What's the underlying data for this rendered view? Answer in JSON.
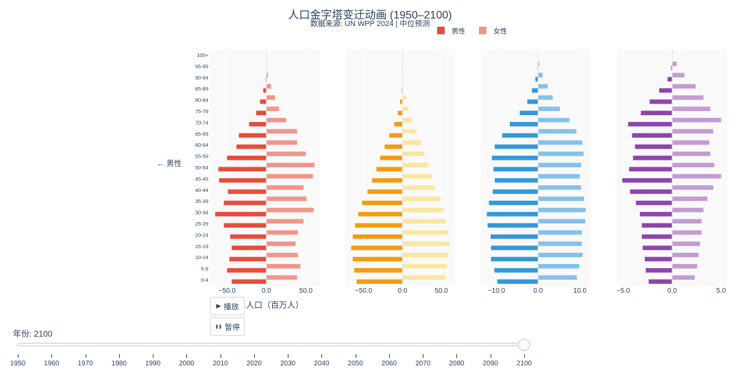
{
  "title": "人口金字塔变迁动画 (1950–2100)",
  "subtitle": "数据来源: UN WPP 2024 | 中位预测",
  "legend": [
    {
      "label": "男性",
      "color": "#e74c3c"
    },
    {
      "label": "女性",
      "color": "#f1948a"
    }
  ],
  "side_label": "← 男性",
  "x_axis_title": "人口（百万人）",
  "buttons": {
    "play": "播放",
    "play_icon": "▶",
    "pause": "暂停",
    "pause_icon": "❚❚"
  },
  "slider": {
    "prefix": "年份: ",
    "value": "2100",
    "current": 2100,
    "min": 1950,
    "max": 2100,
    "ticks": [
      "1950",
      "1960",
      "1970",
      "1980",
      "1990",
      "2000",
      "2010",
      "2020",
      "2030",
      "2040",
      "2050",
      "2060",
      "2070",
      "2080",
      "2090",
      "2100"
    ]
  },
  "chart_data": {
    "type": "bar",
    "orientation": "horizontal",
    "age_groups": [
      "100+",
      "95-99",
      "90-94",
      "85-89",
      "80-84",
      "75-79",
      "70-74",
      "65-69",
      "60-64",
      "55-59",
      "50-54",
      "45-49",
      "40-44",
      "35-39",
      "30-34",
      "25-29",
      "20-24",
      "15-19",
      "10-14",
      "5-9",
      "0-4"
    ],
    "xlabel": "人口（百万人）",
    "panels": [
      {
        "male_color": "#e74c3c",
        "female_color": "#f1948a",
        "xlim": [
          -72,
          68
        ],
        "ticks": [
          -50,
          0,
          50
        ],
        "tick_labels": [
          "−50.0",
          "0.0",
          "50.0"
        ],
        "male": [
          0,
          0,
          1,
          4,
          8,
          13,
          22,
          35,
          38,
          50,
          61,
          60,
          49,
          54,
          65,
          54,
          46,
          44,
          47,
          50,
          44
        ],
        "female": [
          0,
          0.3,
          2,
          6,
          11,
          16,
          25,
          39,
          39,
          50,
          61,
          59,
          47,
          51,
          60,
          47,
          40,
          37,
          40,
          43,
          39
        ]
      },
      {
        "male_color": "#f39c12",
        "female_color": "#f9e79f",
        "xlim": [
          -73.5,
          67.5
        ],
        "ticks": [
          -50,
          0,
          50
        ],
        "tick_labels": [
          "−50.0",
          "0.0",
          "50.0"
        ],
        "male": [
          0,
          0.1,
          0.3,
          1,
          3,
          6,
          10.6,
          17,
          23,
          28.5,
          33.5,
          39,
          45,
          52,
          57,
          61,
          64,
          66,
          64,
          62,
          59
        ],
        "female": [
          0,
          0.2,
          0.6,
          1.5,
          4.7,
          7.6,
          12,
          18,
          24,
          28.5,
          33,
          38,
          42,
          49,
          53,
          56,
          59,
          61,
          59,
          57,
          55
        ]
      },
      {
        "male_color": "#3498db",
        "female_color": "#85c1e9",
        "xlim": [
          -13.7,
          12.6
        ],
        "ticks": [
          -10,
          0,
          10
        ],
        "tick_labels": [
          "−10.0",
          "0.0",
          "10.0"
        ],
        "male": [
          0,
          0.1,
          0.66,
          1.5,
          2.6,
          4.4,
          6.8,
          8.6,
          10.4,
          11.1,
          10.7,
          10.4,
          10.9,
          11.8,
          12.3,
          12.1,
          11.4,
          11.3,
          11.3,
          10.5,
          9.8
        ],
        "female": [
          0,
          0.3,
          1.1,
          2.3,
          3.5,
          5.2,
          7.5,
          9.2,
          10.6,
          10.9,
          10.3,
          10.0,
          10.3,
          11.0,
          11.4,
          11.3,
          10.5,
          10.5,
          10.7,
          9.9,
          9.3
        ]
      },
      {
        "male_color": "#8e44ad",
        "female_color": "#c39bd3",
        "xlim": [
          -5.6,
          5.6
        ],
        "ticks": [
          -5,
          0,
          5
        ],
        "tick_labels": [
          "−5.0",
          "0.0",
          "5.0"
        ],
        "male": [
          0,
          0.1,
          0.47,
          1.33,
          2.3,
          3.2,
          4.5,
          4.1,
          3.8,
          4.0,
          4.4,
          5.1,
          4.3,
          3.7,
          3.3,
          3.1,
          3.1,
          3.0,
          2.8,
          2.7,
          2.4
        ],
        "female": [
          0.05,
          0.45,
          1.24,
          2.4,
          3.2,
          3.9,
          5.0,
          4.2,
          3.8,
          3.9,
          4.3,
          5.0,
          4.2,
          3.6,
          3.2,
          3.0,
          3.0,
          2.85,
          2.7,
          2.55,
          2.3
        ]
      }
    ]
  }
}
